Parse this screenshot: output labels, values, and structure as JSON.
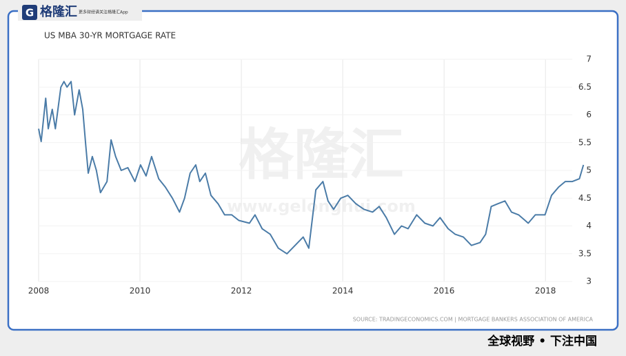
{
  "header": {
    "logo": "格隆汇",
    "tagline": "更多财经请关注格隆汇App"
  },
  "chart_data": {
    "type": "line",
    "title": "US MBA 30-YR MORTGAGE RATE",
    "x": [
      2008.0,
      2008.05,
      2008.14,
      2008.19,
      2008.27,
      2008.33,
      2008.44,
      2008.5,
      2008.56,
      2008.64,
      2008.71,
      2008.8,
      2008.87,
      2008.93,
      2008.98,
      2009.06,
      2009.14,
      2009.22,
      2009.35,
      2009.43,
      2009.52,
      2009.63,
      2009.76,
      2009.9,
      2010.01,
      2010.12,
      2010.23,
      2010.37,
      2010.5,
      2010.64,
      2010.78,
      2010.88,
      2010.99,
      2011.1,
      2011.18,
      2011.29,
      2011.4,
      2011.54,
      2011.67,
      2011.81,
      2011.95,
      2012.16,
      2012.27,
      2012.41,
      2012.57,
      2012.73,
      2012.9,
      2013.06,
      2013.22,
      2013.33,
      2013.47,
      2013.61,
      2013.71,
      2013.82,
      2013.96,
      2014.1,
      2014.26,
      2014.42,
      2014.59,
      2014.72,
      2014.86,
      2015.02,
      2015.16,
      2015.29,
      2015.46,
      2015.62,
      2015.78,
      2015.92,
      2016.08,
      2016.22,
      2016.38,
      2016.54,
      2016.71,
      2016.82,
      2016.93,
      2017.06,
      2017.2,
      2017.33,
      2017.47,
      2017.66,
      2017.8,
      2017.99,
      2018.12,
      2018.26,
      2018.39,
      2018.53,
      2018.67,
      2018.75
    ],
    "series": [
      {
        "color": "#4a7ba7",
        "values": [
          5.75,
          5.52,
          6.3,
          5.75,
          6.1,
          5.75,
          6.5,
          6.6,
          6.5,
          6.6,
          6.0,
          6.45,
          6.1,
          5.45,
          4.95,
          5.25,
          5.0,
          4.6,
          4.8,
          5.55,
          5.25,
          5.0,
          5.05,
          4.8,
          5.1,
          4.9,
          5.25,
          4.85,
          4.7,
          4.5,
          4.25,
          4.5,
          4.95,
          5.1,
          4.8,
          4.95,
          4.55,
          4.4,
          4.2,
          4.2,
          4.1,
          4.05,
          4.2,
          3.95,
          3.85,
          3.6,
          3.5,
          3.65,
          3.8,
          3.6,
          4.65,
          4.8,
          4.45,
          4.3,
          4.5,
          4.55,
          4.4,
          4.3,
          4.25,
          4.35,
          4.15,
          3.85,
          4.0,
          3.95,
          4.2,
          4.05,
          4.0,
          4.15,
          3.95,
          3.85,
          3.8,
          3.65,
          3.7,
          3.85,
          4.35,
          4.4,
          4.45,
          4.25,
          4.2,
          4.05,
          4.2,
          4.2,
          4.55,
          4.7,
          4.8,
          4.8,
          4.85,
          5.1
        ]
      }
    ],
    "xlim": [
      2008,
      2018.8
    ],
    "ylim": [
      3,
      7
    ],
    "xticks": [
      2008,
      2010,
      2012,
      2014,
      2016,
      2018
    ],
    "yticks": [
      3,
      3.5,
      4,
      4.5,
      5,
      5.5,
      6,
      6.5,
      7
    ],
    "grid": true,
    "source": "SOURCE: TRADINGECONOMICS.COM | MORTGAGE BANKERS ASSOCIATION OF AMERICA",
    "watermark": {
      "text": "格隆汇",
      "url": "www.gelonghui.com"
    }
  },
  "footer": {
    "slogan": "全球视野 • 下注中国"
  }
}
